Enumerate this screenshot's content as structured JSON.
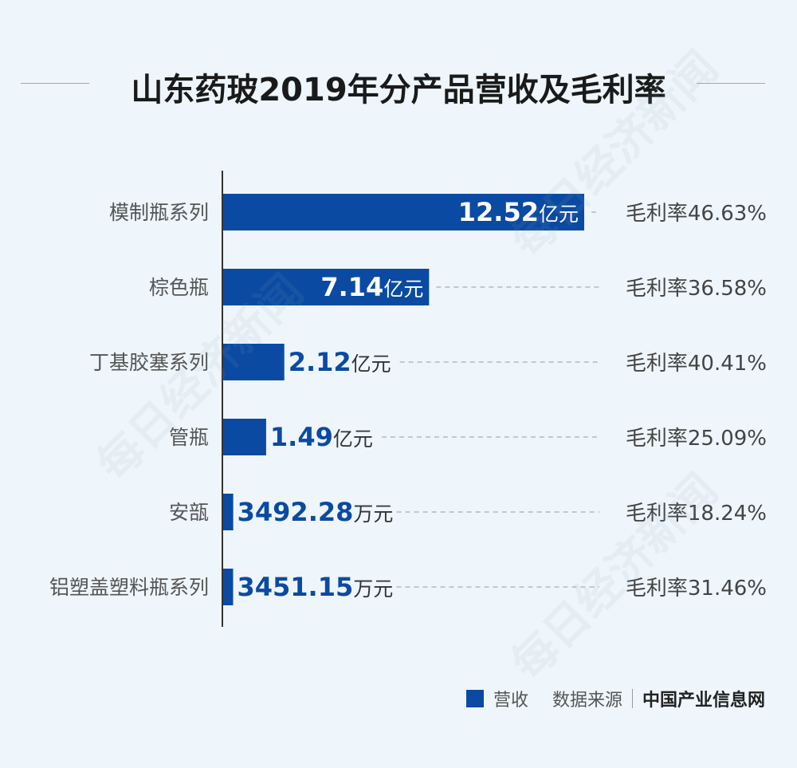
{
  "title": "山东药玻2019年分产品营收及毛利率",
  "legend": {
    "label": "营收"
  },
  "source": {
    "label": "数据来源",
    "name": "中国产业信息网"
  },
  "watermark_text": "每日经济新闻",
  "colors": {
    "bar": "#0b4aa2",
    "value_text": "#0b4aa2",
    "unit_text": "#333333",
    "category_text": "#555555",
    "margin_text": "#444444",
    "axis": "#333333",
    "dash": "#b0bac4"
  },
  "chart_data": {
    "type": "bar",
    "orientation": "horizontal",
    "categories": [
      "模制瓶系列",
      "棕色瓶",
      "丁基胶塞系列",
      "管瓶",
      "安瓿",
      "铝塑盖塑料瓶系列"
    ],
    "series": [
      {
        "name": "营收",
        "values": [
          125200,
          71400,
          21200,
          14900,
          3492.28,
          3451.15
        ]
      }
    ],
    "value_unit": "万元",
    "value_labels": [
      {
        "number": "12.52",
        "unit": "亿元"
      },
      {
        "number": "7.14",
        "unit": "亿元"
      },
      {
        "number": "2.12",
        "unit": "亿元"
      },
      {
        "number": "1.49",
        "unit": "亿元"
      },
      {
        "number": "3492.28",
        "unit": "万元"
      },
      {
        "number": "3451.15",
        "unit": "万元"
      }
    ],
    "gross_margins": [
      "毛利率46.63%",
      "毛利率36.58%",
      "毛利率40.41%",
      "毛利率25.09%",
      "毛利率18.24%",
      "毛利率31.46%"
    ],
    "xlim": [
      0,
      125200
    ],
    "legend_position": "bottom-right"
  }
}
